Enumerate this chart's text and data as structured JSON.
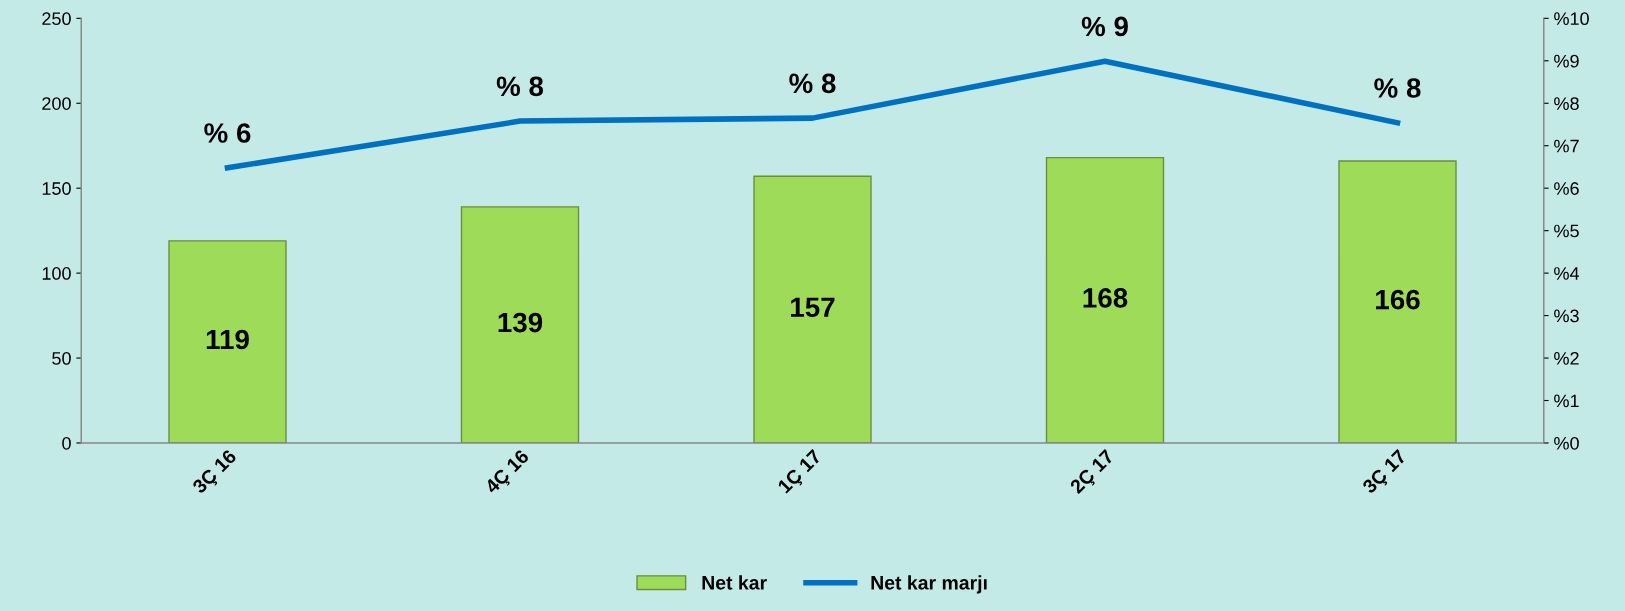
{
  "chart_data": {
    "type": "bar",
    "categories": [
      "3Ç 16",
      "4Ç 16",
      "1Ç 17",
      "2Ç 17",
      "3Ç 17"
    ],
    "series": [
      {
        "name": "Net kar",
        "color": "#9edb58",
        "values": [
          119,
          139,
          157,
          168,
          166
        ],
        "value_labels": [
          "119",
          "139",
          "157",
          "168",
          "166"
        ]
      },
      {
        "name": "Net kar marjı",
        "type": "line",
        "axis": "y2",
        "color": "#0070c0",
        "values": [
          6.48,
          7.58,
          7.65,
          8.99,
          7.54
        ],
        "value_labels": [
          "% 6",
          "% 8",
          "% 8",
          "% 9",
          "% 8"
        ]
      }
    ],
    "ylim": [
      0,
      250
    ],
    "yticks": [
      0,
      50,
      100,
      150,
      200,
      250
    ],
    "y2lim": [
      0,
      10
    ],
    "y2ticks": [
      {
        "value": 0,
        "label": "%0"
      },
      {
        "value": 1,
        "label": "%1"
      },
      {
        "value": 2,
        "label": "%2"
      },
      {
        "value": 3,
        "label": "%3"
      },
      {
        "value": 4,
        "label": "%4"
      },
      {
        "value": 5,
        "label": "%5"
      },
      {
        "value": 6,
        "label": "%6"
      },
      {
        "value": 7,
        "label": "%7"
      },
      {
        "value": 8,
        "label": "%8"
      },
      {
        "value": 9,
        "label": "%9"
      },
      {
        "value": 10,
        "label": "%10"
      }
    ],
    "legend": "bottom",
    "grid": false,
    "marker": "none",
    "line_style": "solid"
  }
}
